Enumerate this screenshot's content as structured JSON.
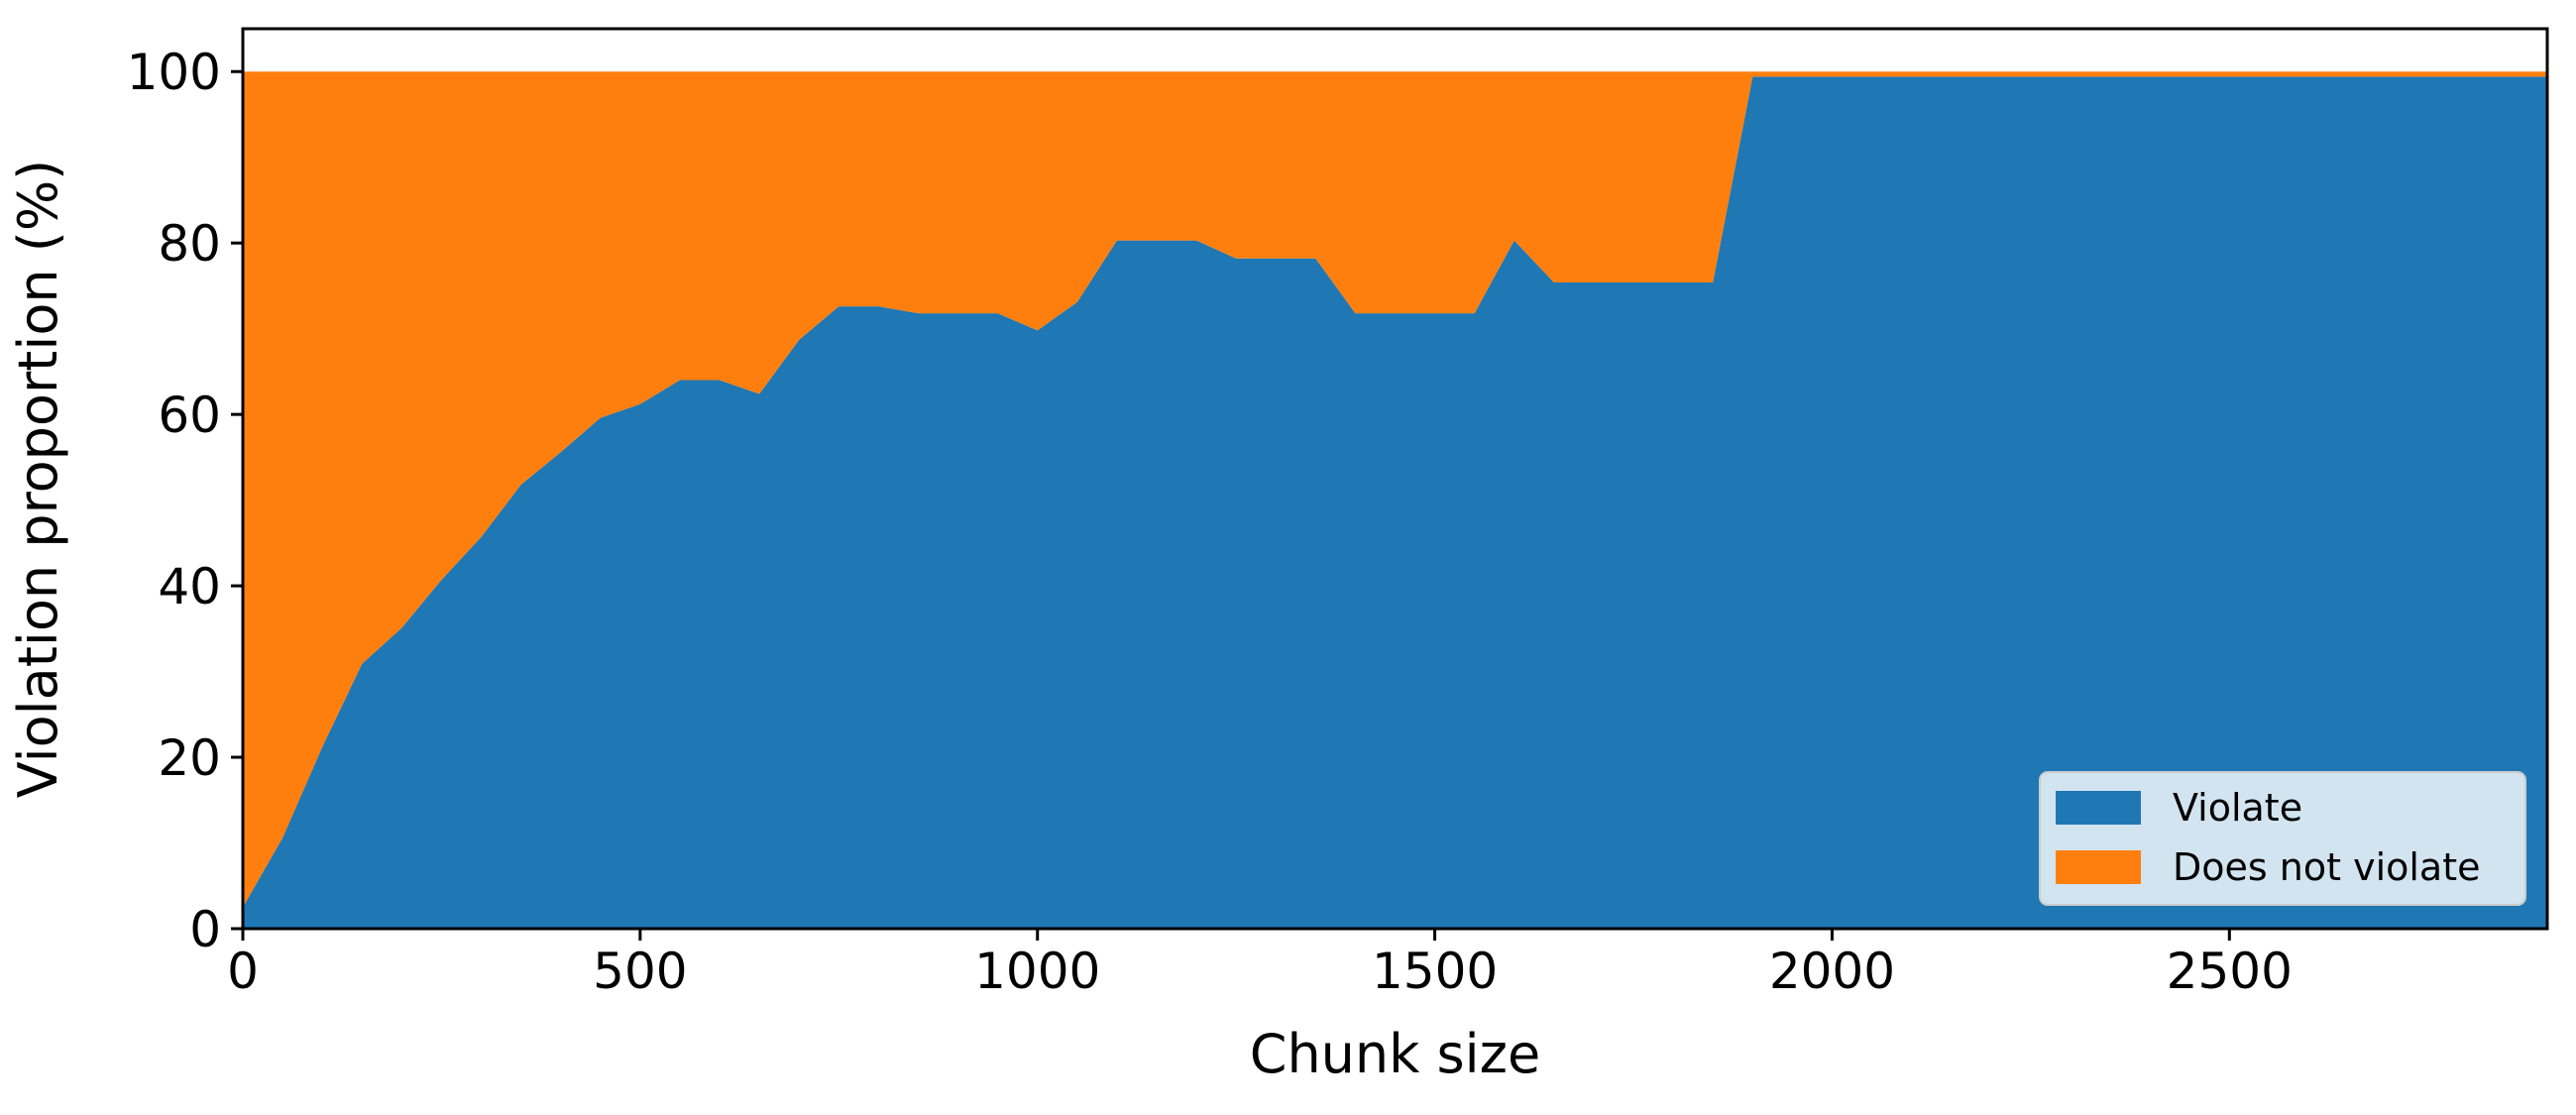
{
  "chart_data": {
    "type": "area",
    "stacked": true,
    "title": "",
    "xlabel": "Chunk size",
    "ylabel": "Violation proportion (%)",
    "xlim": [
      0,
      2900
    ],
    "ylim": [
      0,
      105
    ],
    "xticks": [
      0,
      500,
      1000,
      1500,
      2000,
      2500
    ],
    "yticks": [
      0,
      20,
      40,
      60,
      80,
      100
    ],
    "grid": false,
    "legend_position": "lower-right",
    "x": [
      0,
      50,
      100,
      150,
      200,
      250,
      300,
      350,
      400,
      450,
      500,
      550,
      600,
      650,
      700,
      750,
      800,
      850,
      900,
      950,
      1000,
      1050,
      1100,
      1150,
      1200,
      1250,
      1300,
      1350,
      1400,
      1450,
      1500,
      1550,
      1600,
      1650,
      1700,
      1750,
      1800,
      1850,
      1900,
      1950,
      2000,
      2050,
      2100,
      2150,
      2200,
      2250,
      2300,
      2350,
      2400,
      2450,
      2500,
      2550,
      2600,
      2650,
      2700,
      2750,
      2800,
      2850,
      2900
    ],
    "series": [
      {
        "name": "Violate",
        "color": "#1f77b4",
        "values": [
          2.5,
          10.6,
          21.2,
          30.9,
          35.1,
          40.7,
          45.7,
          51.8,
          55.6,
          59.6,
          61.2,
          64.0,
          64.0,
          62.4,
          68.7,
          72.6,
          72.6,
          71.8,
          71.8,
          71.8,
          69.8,
          73.1,
          80.3,
          80.3,
          80.3,
          78.2,
          78.2,
          78.2,
          71.8,
          71.8,
          71.8,
          71.8,
          80.3,
          75.4,
          75.4,
          75.4,
          75.4,
          75.4,
          99.4,
          99.4,
          99.4,
          99.4,
          99.4,
          99.4,
          99.4,
          99.4,
          99.4,
          99.4,
          99.4,
          99.4,
          99.4,
          99.4,
          99.4,
          99.4,
          99.4,
          99.4,
          99.4,
          99.4,
          99.4
        ]
      },
      {
        "name": "Does not violate",
        "color": "#ff7f0e",
        "values": [
          97.5,
          89.4,
          78.8,
          69.1,
          64.9,
          59.3,
          54.3,
          48.2,
          44.4,
          40.4,
          38.8,
          36.0,
          36.0,
          37.6,
          31.3,
          27.4,
          27.4,
          28.2,
          28.2,
          28.2,
          30.2,
          26.9,
          19.7,
          19.7,
          19.7,
          21.8,
          21.8,
          21.8,
          28.2,
          28.2,
          28.2,
          28.2,
          19.7,
          24.6,
          24.6,
          24.6,
          24.6,
          24.6,
          0.6,
          0.6,
          0.6,
          0.6,
          0.6,
          0.6,
          0.6,
          0.6,
          0.6,
          0.6,
          0.6,
          0.6,
          0.6,
          0.6,
          0.6,
          0.6,
          0.6,
          0.6,
          0.6,
          0.6,
          0.6
        ]
      }
    ]
  }
}
